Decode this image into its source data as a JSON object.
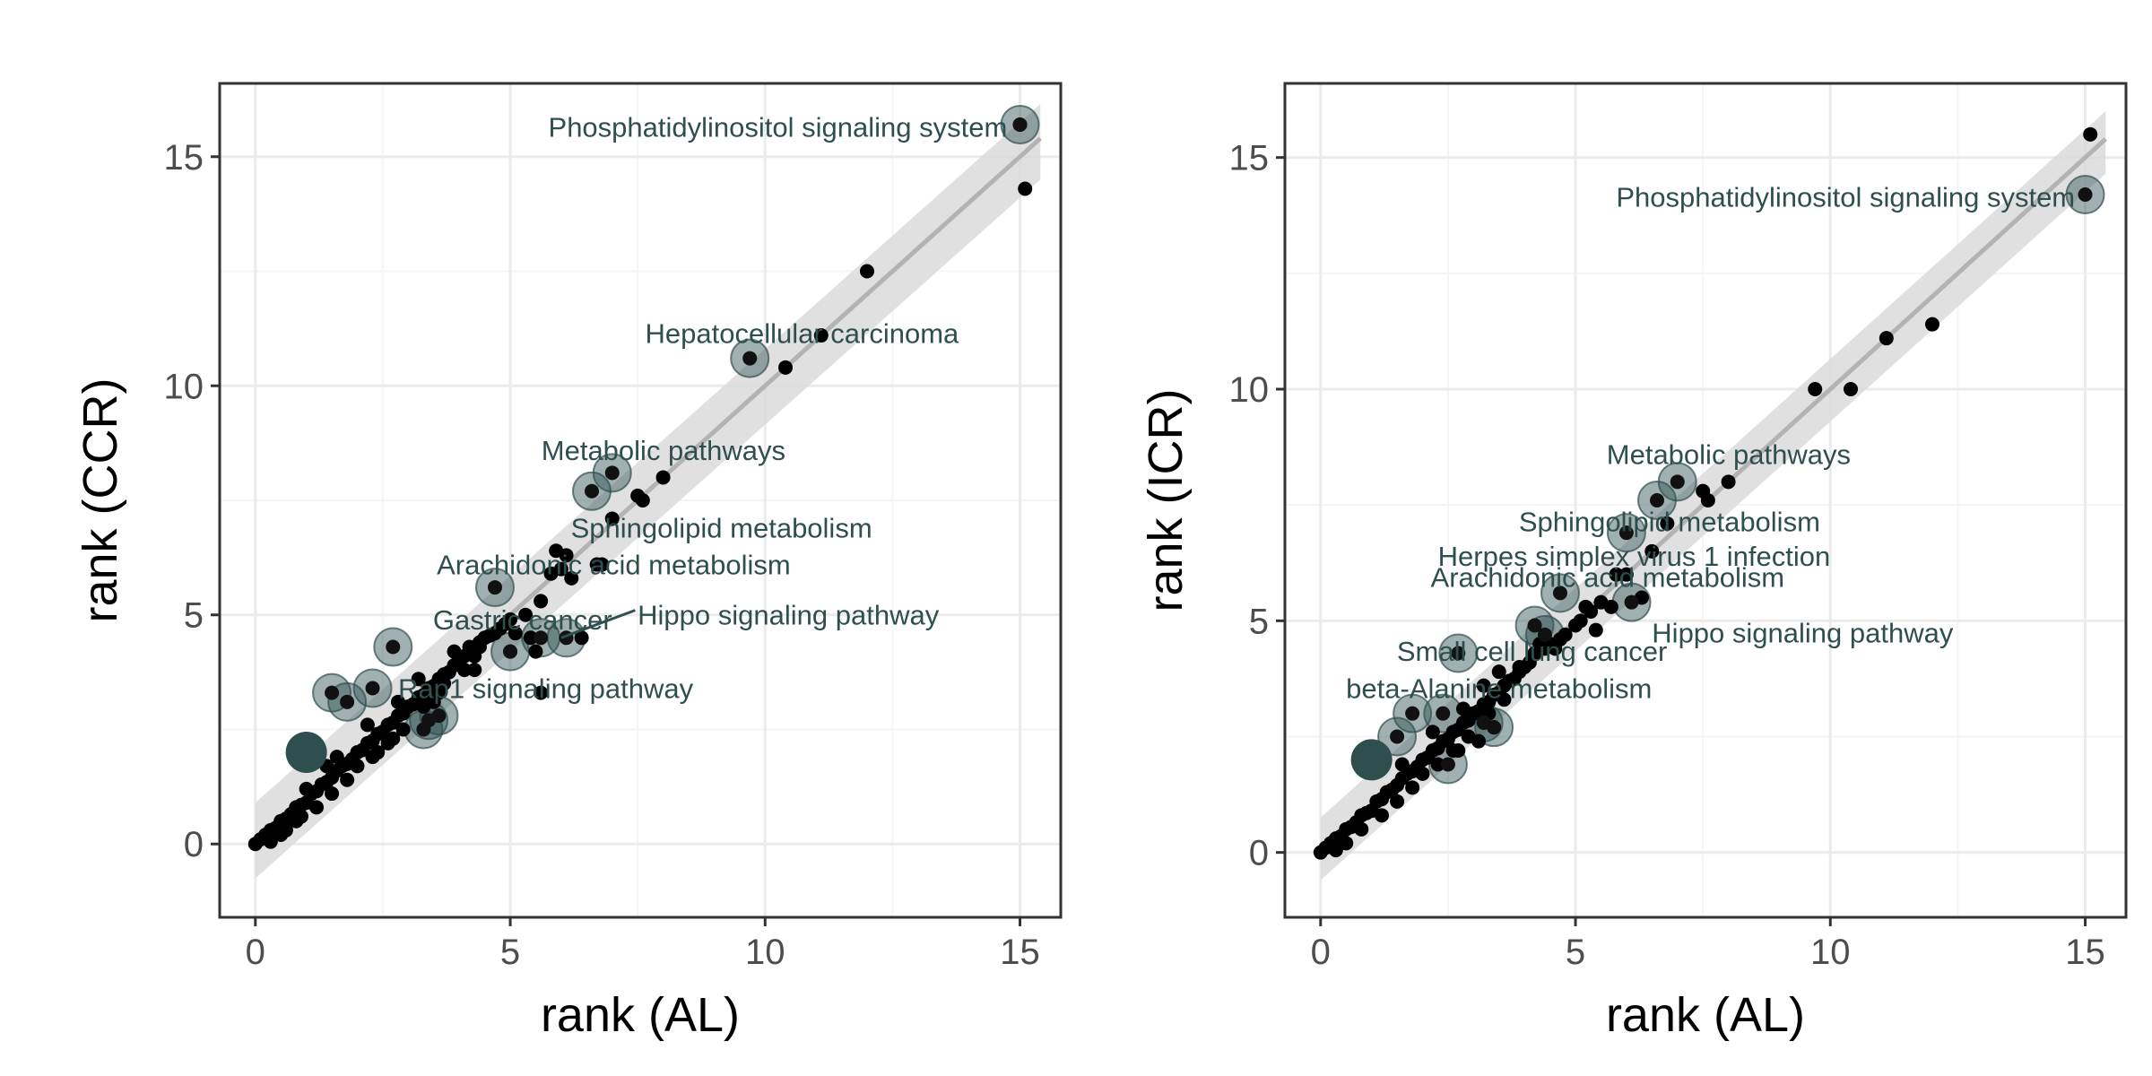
{
  "colors": {
    "panel_border": "#333333",
    "grid_major": "#ebebeb",
    "grid_minor": "#f5f5f5",
    "point": "#000000",
    "highlight": "#2f4f4f",
    "ribbon": "#dadada",
    "trend_line": "#b3b3b3"
  },
  "chart_data": [
    {
      "type": "scatter",
      "title": "",
      "xlabel": "rank (AL)",
      "ylabel": "rank (CCR)",
      "xlim": [
        -0.7,
        15.8
      ],
      "ylim": [
        -1.6,
        16.6
      ],
      "x_ticks": [
        0,
        5,
        10,
        15
      ],
      "y_ticks": [
        0,
        5,
        10,
        15
      ],
      "x_tick_labels": [
        "0",
        "5",
        "10",
        "15"
      ],
      "y_tick_labels": [
        "0",
        "5",
        "10",
        "15"
      ],
      "grid": true,
      "trend": {
        "intercept": 0.0,
        "slope": 1.0,
        "band_low": 0.75,
        "band_high": 0.9
      },
      "points": [
        [
          0.0,
          0.0
        ],
        [
          0.1,
          0.1
        ],
        [
          0.2,
          0.2
        ],
        [
          0.3,
          0.3
        ],
        [
          0.4,
          0.35
        ],
        [
          0.5,
          0.5
        ],
        [
          0.6,
          0.55
        ],
        [
          0.7,
          0.65
        ],
        [
          0.8,
          0.8
        ],
        [
          0.9,
          0.85
        ],
        [
          1.0,
          0.9
        ],
        [
          1.1,
          1.1
        ],
        [
          1.2,
          1.15
        ],
        [
          1.3,
          1.3
        ],
        [
          1.4,
          1.35
        ],
        [
          1.5,
          1.45
        ],
        [
          1.6,
          1.6
        ],
        [
          1.7,
          1.7
        ],
        [
          1.8,
          1.75
        ],
        [
          1.9,
          1.85
        ],
        [
          2.0,
          2.0
        ],
        [
          2.1,
          2.05
        ],
        [
          2.2,
          2.2
        ],
        [
          2.3,
          2.25
        ],
        [
          2.4,
          2.4
        ],
        [
          2.5,
          2.45
        ],
        [
          2.6,
          2.6
        ],
        [
          2.7,
          2.65
        ],
        [
          2.8,
          2.8
        ],
        [
          2.9,
          2.85
        ],
        [
          3.0,
          3.0
        ],
        [
          3.1,
          3.05
        ],
        [
          3.2,
          3.2
        ],
        [
          3.3,
          3.25
        ],
        [
          3.4,
          3.4
        ],
        [
          3.5,
          3.45
        ],
        [
          3.6,
          3.6
        ],
        [
          3.7,
          3.7
        ],
        [
          3.8,
          3.75
        ],
        [
          3.9,
          3.9
        ],
        [
          4.0,
          4.0
        ],
        [
          4.1,
          4.1
        ],
        [
          4.2,
          4.3
        ],
        [
          4.3,
          4.1
        ],
        [
          4.4,
          4.4
        ],
        [
          4.5,
          4.5
        ],
        [
          4.6,
          4.55
        ],
        [
          4.7,
          4.6
        ],
        [
          4.8,
          4.7
        ],
        [
          5.0,
          4.9
        ],
        [
          5.1,
          4.6
        ],
        [
          5.3,
          5.0
        ],
        [
          5.6,
          5.3
        ],
        [
          5.8,
          5.9
        ],
        [
          5.9,
          6.4
        ],
        [
          6.1,
          6.3
        ],
        [
          6.0,
          6.0
        ],
        [
          6.2,
          5.8
        ],
        [
          6.7,
          6.1
        ],
        [
          7.0,
          7.1
        ],
        [
          7.5,
          7.6
        ],
        [
          7.6,
          7.5
        ],
        [
          8.0,
          8.0
        ],
        [
          10.4,
          10.4
        ],
        [
          11.1,
          11.1
        ],
        [
          12.0,
          12.5
        ],
        [
          15.1,
          14.3
        ],
        [
          15.0,
          15.7
        ],
        [
          1.2,
          0.8
        ],
        [
          1.5,
          1.1
        ],
        [
          2.0,
          1.7
        ],
        [
          2.6,
          2.2
        ],
        [
          0.6,
          0.3
        ],
        [
          0.9,
          0.6
        ],
        [
          1.8,
          1.4
        ],
        [
          2.3,
          1.9
        ],
        [
          2.9,
          2.5
        ],
        [
          3.3,
          3.0
        ],
        [
          3.6,
          3.3
        ],
        [
          1.6,
          1.9
        ],
        [
          2.2,
          2.6
        ],
        [
          2.8,
          3.1
        ],
        [
          3.2,
          3.6
        ],
        [
          3.9,
          4.2
        ],
        [
          4.3,
          3.8
        ],
        [
          5.6,
          3.3
        ],
        [
          4.4,
          4.3
        ],
        [
          5.5,
          4.2
        ],
        [
          6.4,
          4.5
        ],
        [
          6.8,
          6.1
        ],
        [
          5.0,
          4.2
        ],
        [
          4.9,
          4.8
        ],
        [
          0.3,
          0.05
        ],
        [
          0.5,
          0.2
        ],
        [
          0.8,
          0.5
        ],
        [
          1.0,
          1.2
        ],
        [
          1.4,
          1.7
        ],
        [
          3.5,
          3.1
        ],
        [
          3.7,
          3.5
        ],
        [
          4.1,
          3.8
        ],
        [
          2.4,
          2.0
        ],
        [
          2.7,
          2.3
        ],
        [
          5.4,
          4.5
        ]
      ],
      "highlights": [
        [
          15.0,
          15.7
        ],
        [
          9.7,
          10.6
        ],
        [
          7.0,
          8.1
        ],
        [
          6.6,
          7.7
        ],
        [
          4.7,
          5.6
        ],
        [
          2.7,
          4.3
        ],
        [
          5.0,
          4.2
        ],
        [
          5.6,
          4.5
        ],
        [
          6.1,
          4.5
        ],
        [
          1.5,
          3.3
        ],
        [
          1.8,
          3.1
        ],
        [
          2.3,
          3.4
        ],
        [
          3.4,
          2.7
        ],
        [
          3.3,
          2.5
        ],
        [
          3.6,
          2.8
        ]
      ],
      "strong_points": [
        [
          1.0,
          2.0
        ]
      ],
      "annotations": [
        {
          "text": "Phosphatidylinositol signaling system",
          "x": 14.75,
          "y": 15.65,
          "anchor": "end"
        },
        {
          "text": "Hepatocellular carcinoma",
          "x": 13.8,
          "y": 11.15,
          "anchor": "end"
        },
        {
          "text": "Metabolic pathways",
          "x": 10.4,
          "y": 8.6,
          "anchor": "end"
        },
        {
          "text": "Sphingolipid metabolism",
          "x": 12.1,
          "y": 6.9,
          "anchor": "end"
        },
        {
          "text": "Arachidonic acid metabolism",
          "x": 10.5,
          "y": 6.1,
          "anchor": "end"
        },
        {
          "text": "Gastric cancer",
          "x": 7.0,
          "y": 4.9,
          "anchor": "end"
        },
        {
          "text": "Hippo signaling pathway",
          "x": 7.5,
          "y": 5.0,
          "anchor": "start"
        },
        {
          "text": "Rap1 signaling pathway",
          "x": 2.8,
          "y": 3.4,
          "anchor": "start"
        }
      ],
      "leaders": [
        {
          "x1": 7.45,
          "y1": 5.1,
          "x2": 6.0,
          "y2": 4.5
        }
      ]
    },
    {
      "type": "scatter",
      "title": "",
      "xlabel": "rank (AL)",
      "ylabel": "rank (ICR)",
      "xlim": [
        -0.7,
        15.8
      ],
      "ylim": [
        -1.4,
        16.6
      ],
      "x_ticks": [
        0,
        5,
        10,
        15
      ],
      "y_ticks": [
        0,
        5,
        10,
        15
      ],
      "x_tick_labels": [
        "0",
        "5",
        "10",
        "15"
      ],
      "y_tick_labels": [
        "0",
        "5",
        "10",
        "15"
      ],
      "grid": true,
      "trend": {
        "intercept": 0.0,
        "slope": 1.0,
        "band_low": 0.6,
        "band_high": 0.75
      },
      "points": [
        [
          0.0,
          0.0
        ],
        [
          0.1,
          0.1
        ],
        [
          0.2,
          0.2
        ],
        [
          0.3,
          0.3
        ],
        [
          0.4,
          0.35
        ],
        [
          0.5,
          0.5
        ],
        [
          0.6,
          0.55
        ],
        [
          0.7,
          0.65
        ],
        [
          0.8,
          0.8
        ],
        [
          0.9,
          0.85
        ],
        [
          1.0,
          0.9
        ],
        [
          1.1,
          1.1
        ],
        [
          1.2,
          1.15
        ],
        [
          1.3,
          1.3
        ],
        [
          1.4,
          1.35
        ],
        [
          1.5,
          1.45
        ],
        [
          1.6,
          1.6
        ],
        [
          1.7,
          1.7
        ],
        [
          1.8,
          1.75
        ],
        [
          1.9,
          1.85
        ],
        [
          2.0,
          2.0
        ],
        [
          2.1,
          2.05
        ],
        [
          2.2,
          2.2
        ],
        [
          2.3,
          2.25
        ],
        [
          2.4,
          2.4
        ],
        [
          2.5,
          2.45
        ],
        [
          2.6,
          2.6
        ],
        [
          2.7,
          2.65
        ],
        [
          2.8,
          2.8
        ],
        [
          2.9,
          2.85
        ],
        [
          3.0,
          3.0
        ],
        [
          3.1,
          3.05
        ],
        [
          3.2,
          3.2
        ],
        [
          3.3,
          3.25
        ],
        [
          3.4,
          3.4
        ],
        [
          3.5,
          3.45
        ],
        [
          3.6,
          3.6
        ],
        [
          3.7,
          3.7
        ],
        [
          3.8,
          3.75
        ],
        [
          3.9,
          3.9
        ],
        [
          4.0,
          4.0
        ],
        [
          4.1,
          4.1
        ],
        [
          4.2,
          4.3
        ],
        [
          4.4,
          4.4
        ],
        [
          4.5,
          4.5
        ],
        [
          4.7,
          4.6
        ],
        [
          4.8,
          4.7
        ],
        [
          5.0,
          4.9
        ],
        [
          5.1,
          5.0
        ],
        [
          5.3,
          5.2
        ],
        [
          5.5,
          5.4
        ],
        [
          5.7,
          5.3
        ],
        [
          5.8,
          6.0
        ],
        [
          6.0,
          6.0
        ],
        [
          6.3,
          5.5
        ],
        [
          6.5,
          6.5
        ],
        [
          6.8,
          7.1
        ],
        [
          7.5,
          7.8
        ],
        [
          7.6,
          7.6
        ],
        [
          8.0,
          8.0
        ],
        [
          9.7,
          10.0
        ],
        [
          10.4,
          10.0
        ],
        [
          11.1,
          11.1
        ],
        [
          12.0,
          11.4
        ],
        [
          15.1,
          15.5
        ],
        [
          0.3,
          0.05
        ],
        [
          0.5,
          0.2
        ],
        [
          0.8,
          0.5
        ],
        [
          1.2,
          0.8
        ],
        [
          1.5,
          1.1
        ],
        [
          1.8,
          1.4
        ],
        [
          2.0,
          1.7
        ],
        [
          2.3,
          1.9
        ],
        [
          2.6,
          2.2
        ],
        [
          2.9,
          2.5
        ],
        [
          3.3,
          3.0
        ],
        [
          3.6,
          3.3
        ],
        [
          1.6,
          1.9
        ],
        [
          2.2,
          2.6
        ],
        [
          2.8,
          3.1
        ],
        [
          3.2,
          3.6
        ],
        [
          3.5,
          3.9
        ],
        [
          3.9,
          4.0
        ],
        [
          4.3,
          4.5
        ],
        [
          4.6,
          4.4
        ],
        [
          5.4,
          4.8
        ],
        [
          5.2,
          5.3
        ],
        [
          3.4,
          2.7
        ],
        [
          3.1,
          2.4
        ],
        [
          2.7,
          2.2
        ]
      ],
      "highlights": [
        [
          15.0,
          14.2
        ],
        [
          7.0,
          8.0
        ],
        [
          6.6,
          7.6
        ],
        [
          6.0,
          6.9
        ],
        [
          4.7,
          5.6
        ],
        [
          6.1,
          5.4
        ],
        [
          4.2,
          4.9
        ],
        [
          4.4,
          4.7
        ],
        [
          2.7,
          4.3
        ],
        [
          1.5,
          2.5
        ],
        [
          1.8,
          3.0
        ],
        [
          2.4,
          3.0
        ],
        [
          2.5,
          1.9
        ],
        [
          3.2,
          2.8
        ],
        [
          3.4,
          2.7
        ]
      ],
      "strong_points": [
        [
          1.0,
          2.0
        ]
      ],
      "annotations": [
        {
          "text": "Phosphatidylinositol signaling system",
          "x": 14.8,
          "y": 14.15,
          "anchor": "end"
        },
        {
          "text": "Metabolic pathways",
          "x": 10.4,
          "y": 8.6,
          "anchor": "end"
        },
        {
          "text": "Sphingolipid metabolism",
          "x": 9.8,
          "y": 7.15,
          "anchor": "end"
        },
        {
          "text": "Herpes simplex virus 1 infection",
          "x": 10.0,
          "y": 6.4,
          "anchor": "end"
        },
        {
          "text": "Arachidonic acid metabolism",
          "x": 9.1,
          "y": 5.95,
          "anchor": "end"
        },
        {
          "text": "Hippo signaling pathway",
          "x": 6.5,
          "y": 4.75,
          "anchor": "start"
        },
        {
          "text": "Small cell lung cancer",
          "x": 6.8,
          "y": 4.35,
          "anchor": "end"
        },
        {
          "text": "beta-Alanine metabolism",
          "x": 6.5,
          "y": 3.55,
          "anchor": "end"
        }
      ],
      "leaders": []
    }
  ]
}
